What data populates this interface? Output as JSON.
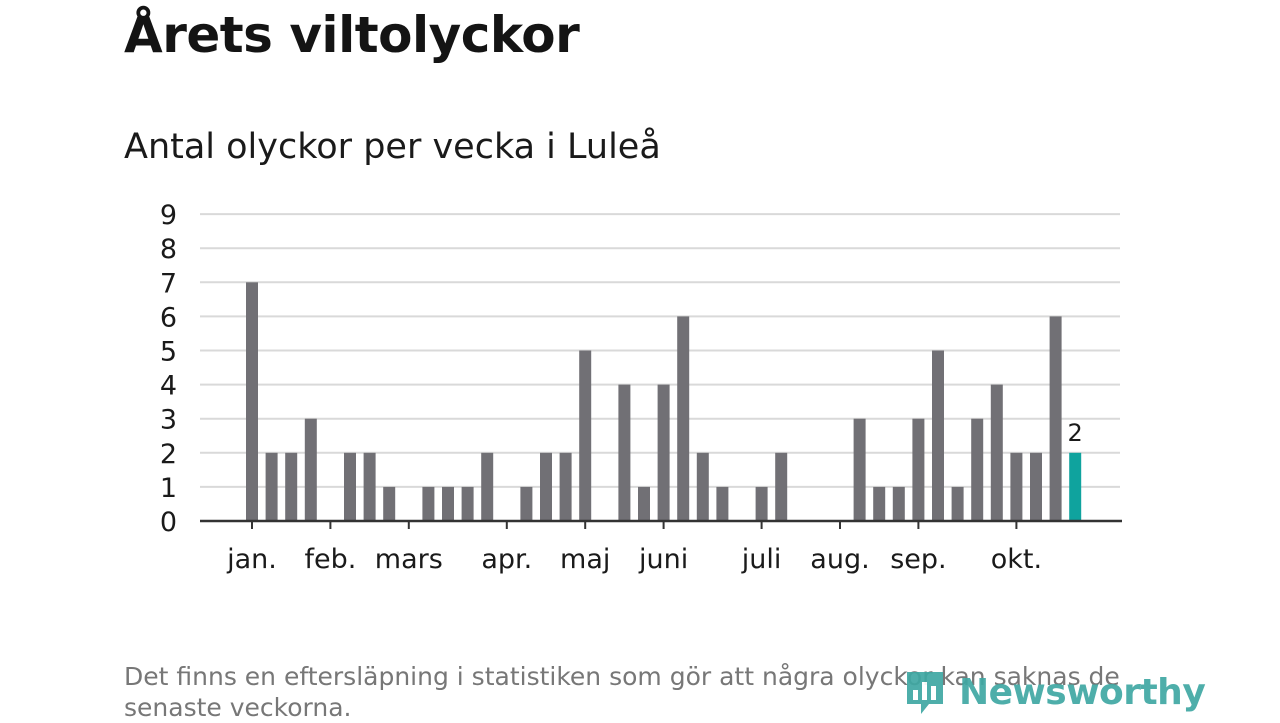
{
  "title": "Årets viltolyckor",
  "subtitle": "Antal olyckor per vecka i Luleå",
  "footnote": "Det finns en eftersläpning i statistiken som gör att några olyckor kan saknas de senaste veckorna.",
  "brand": {
    "name": "Newsworthy"
  },
  "colors": {
    "bar": "#717075",
    "highlight": "#0fa39e",
    "grid": "#d9d9d9",
    "axis": "#333333",
    "text": "#1a1a1a",
    "brand": "#3fa8a3"
  },
  "chart_data": {
    "type": "bar",
    "title": "Antal olyckor per vecka i Luleå",
    "xlabel": "",
    "ylabel": "",
    "ylim": [
      0,
      9
    ],
    "yticks": [
      0,
      1,
      2,
      3,
      4,
      5,
      6,
      7,
      8,
      9
    ],
    "weeks": [
      1,
      2,
      3,
      4,
      5,
      6,
      7,
      8,
      9,
      10,
      11,
      12,
      13,
      14,
      15,
      16,
      17,
      18,
      19,
      20,
      21,
      22,
      23,
      24,
      25,
      26,
      27,
      28,
      29,
      30,
      31,
      32,
      33,
      34,
      35,
      36,
      37,
      38,
      39,
      40,
      41,
      42,
      43
    ],
    "values": [
      7,
      2,
      2,
      3,
      0,
      2,
      2,
      1,
      0,
      1,
      1,
      1,
      2,
      0,
      1,
      2,
      2,
      5,
      0,
      4,
      1,
      4,
      6,
      2,
      1,
      0,
      1,
      2,
      0,
      0,
      0,
      3,
      1,
      1,
      3,
      5,
      1,
      3,
      4,
      2,
      2,
      6,
      2
    ],
    "highlight_index": 42,
    "highlight_label": "2",
    "month_labels": [
      {
        "label": "jan.",
        "week": 1
      },
      {
        "label": "feb.",
        "week": 5
      },
      {
        "label": "mars",
        "week": 9
      },
      {
        "label": "apr.",
        "week": 14
      },
      {
        "label": "maj",
        "week": 18
      },
      {
        "label": "juni",
        "week": 22
      },
      {
        "label": "juli",
        "week": 27
      },
      {
        "label": "aug.",
        "week": 31
      },
      {
        "label": "sep.",
        "week": 35
      },
      {
        "label": "okt.",
        "week": 40
      }
    ]
  }
}
